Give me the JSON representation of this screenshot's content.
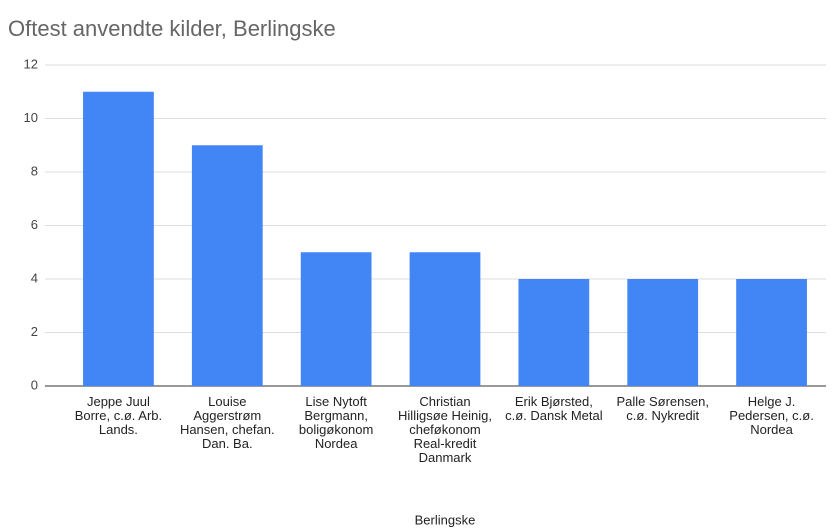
{
  "chart_data": {
    "type": "bar",
    "title": "Oftest anvendte kilder, Berlingske",
    "x_label": "Berlingske",
    "categories": [
      "Jeppe Juul Borre, c.ø. Arb. Lands.",
      "Louise Aggerstrøm Hansen, chefan. Dan. Ba.",
      "Lise Nytoft Bergmann, boligøkonom Nordea",
      "Christian Hilligsøe Heinig, cheføkonom Real-kredit Danmark",
      "Erik Bjørsted, c.ø. Dansk Metal",
      "Palle Sørensen, c.ø. Nykredit",
      "Helge J. Pedersen, c.ø. Nordea"
    ],
    "values": [
      11,
      9,
      5,
      5,
      4,
      4,
      4
    ],
    "color": "#4285f4",
    "ylim": [
      0,
      12
    ],
    "yticks": [
      0,
      2,
      4,
      6,
      8,
      10,
      12
    ],
    "grid": true
  }
}
